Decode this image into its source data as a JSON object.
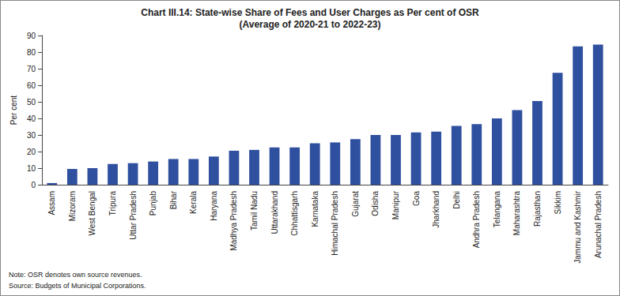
{
  "chart_data": {
    "type": "bar",
    "title": "Chart III.14: State-wise Share of Fees and User Charges as Per cent of OSR",
    "subtitle": "(Average of 2020-21 to 2022-23)",
    "y_label": "Per cent",
    "categories": [
      "Assam",
      "Mizoram",
      "West Bengal",
      "Tripura",
      "Uttar Pradesh",
      "Punjab",
      "Bihar",
      "Kerala",
      "Haryana",
      "Madhya Pradesh",
      "Tamil Nadu",
      "Uttarakhand",
      "Chhattisgarh",
      "Karnataka",
      "Himachal Pradesh",
      "Gujarat",
      "Odisha",
      "Manipur",
      "Goa",
      "Jharkhand",
      "Delhi",
      "Andhra Pradesh",
      "Telangana",
      "Maharashtra",
      "Rajasthan",
      "Sikkim",
      "Jammu and Kashmir",
      "Arunachal Pradesh"
    ],
    "values": [
      1,
      9.5,
      10,
      12.5,
      13,
      14,
      15.5,
      15.5,
      17,
      20.5,
      21,
      22.5,
      22.5,
      25,
      25.5,
      27.5,
      30,
      30,
      31.5,
      32,
      35.5,
      36.5,
      40,
      45,
      50.5,
      67.5,
      83.5,
      84.5
    ],
    "color": "#2f4f9f",
    "ylim": [
      0,
      90
    ],
    "yticks": [
      0,
      10,
      20,
      30,
      40,
      50,
      60,
      70,
      80,
      90
    ],
    "grid": false,
    "annotations": [
      "Note: OSR denotes own source revenues.",
      "Source: Budgets of Municipal Corporations."
    ]
  }
}
